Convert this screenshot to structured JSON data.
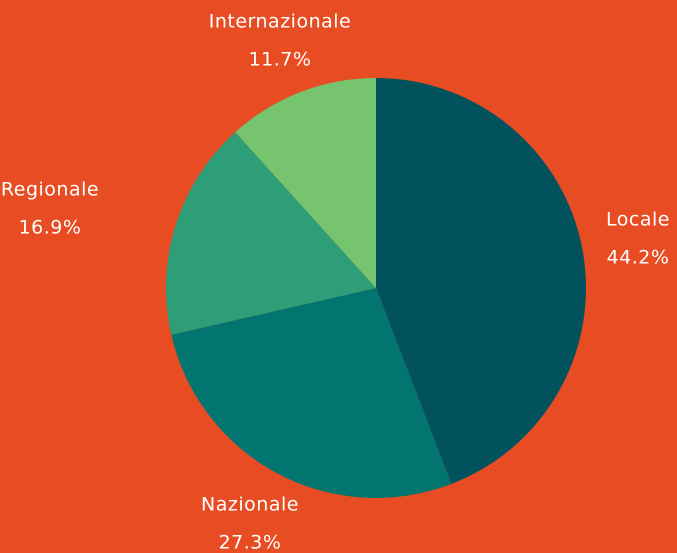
{
  "chart_data": {
    "type": "pie",
    "categories": [
      "Locale",
      "Nazionale",
      "Regionale",
      "Internazionale"
    ],
    "values": [
      44.2,
      27.3,
      16.9,
      11.7
    ],
    "value_labels": [
      "44.2%",
      "27.3%",
      "16.9%",
      "11.7%"
    ],
    "colors": [
      "#02525e",
      "#037571",
      "#2e9e78",
      "#77c46f"
    ]
  }
}
